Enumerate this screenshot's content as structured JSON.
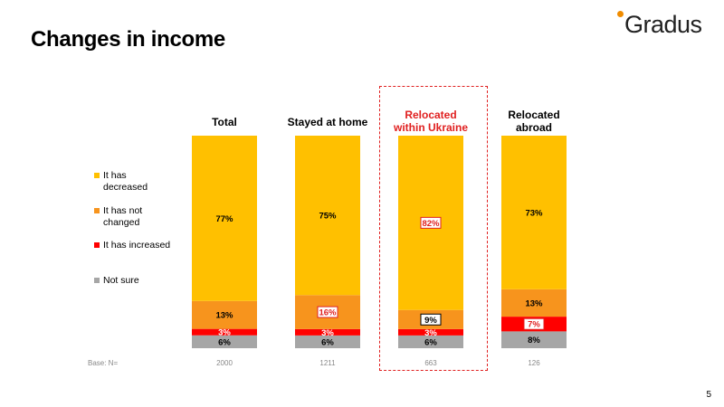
{
  "slide": {
    "title": "Changes in income",
    "logo_text": "Gradus",
    "page_number": "5"
  },
  "colors": {
    "decreased": "#FFC000",
    "not_changed": "#F7941D",
    "increased": "#FF0000",
    "not_sure": "#A6A6A6",
    "highlight": "#E02020",
    "logo_accent": "#F08C00"
  },
  "chart_data": {
    "type": "bar",
    "stacked": true,
    "percent": true,
    "categories": [
      "Total",
      "Stayed at home",
      "Relocated within Ukraine",
      "Relocated abroad"
    ],
    "series": [
      {
        "name": "It has decreased",
        "values": [
          77,
          75,
          82,
          73
        ]
      },
      {
        "name": "It has not changed",
        "values": [
          13,
          16,
          9,
          13
        ]
      },
      {
        "name": "It has increased",
        "values": [
          3,
          3,
          3,
          7
        ]
      },
      {
        "name": "Not sure",
        "values": [
          6,
          6,
          6,
          8
        ]
      }
    ],
    "labels": [
      [
        "77%",
        "75%",
        "82%",
        "73%"
      ],
      [
        "13%",
        "16%",
        "9%",
        "13%"
      ],
      [
        "3%",
        "3%",
        "3%",
        "7%"
      ],
      [
        "6%",
        "6%",
        "6%",
        "8%"
      ]
    ],
    "boxed_labels": [
      {
        "series": 0,
        "category": 2,
        "style": "red"
      },
      {
        "series": 1,
        "category": 1,
        "style": "red"
      },
      {
        "series": 1,
        "category": 2,
        "style": "black"
      },
      {
        "series": 2,
        "category": 3,
        "style": "red"
      }
    ],
    "highlighted_category": "Relocated within Ukraine",
    "legend_position": "left",
    "base": {
      "label": "Base: N=",
      "values": [
        "2000",
        "1211",
        "663",
        "126"
      ]
    },
    "headers": [
      {
        "lines": [
          "Total"
        ],
        "color": "#000000"
      },
      {
        "lines": [
          "Stayed at home"
        ],
        "color": "#000000"
      },
      {
        "lines": [
          "Relocated",
          "within Ukraine"
        ],
        "color": "#E02020"
      },
      {
        "lines": [
          "Relocated",
          "abroad"
        ],
        "color": "#000000"
      }
    ],
    "legend": [
      {
        "lines": [
          "It has",
          "decreased"
        ]
      },
      {
        "lines": [
          "It has not",
          "changed"
        ]
      },
      {
        "lines": [
          "It has increased"
        ]
      },
      {
        "lines": [
          "Not sure"
        ]
      }
    ]
  }
}
